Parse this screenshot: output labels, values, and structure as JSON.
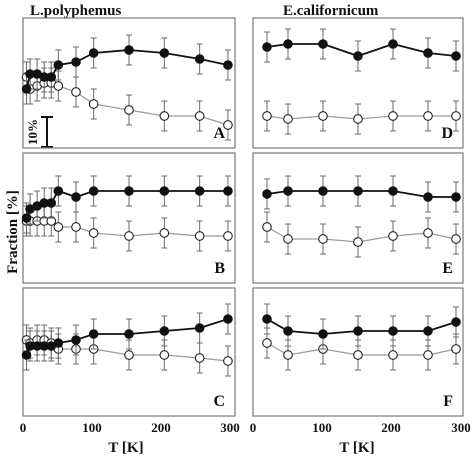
{
  "figure": {
    "column_titles": [
      "L.polyphemus",
      "E.californicum"
    ],
    "ylabel": "Fraction [%]",
    "xlabel": "T [K]",
    "scale_bar_label": "10%",
    "x_ticks": [
      "0",
      "100",
      "200",
      "300"
    ]
  },
  "chart_data": [
    {
      "type": "line",
      "panel": "A",
      "column": "L.polyphemus",
      "x": [
        5,
        10,
        20,
        30,
        40,
        50,
        75,
        100,
        150,
        200,
        250,
        290
      ],
      "xlim": [
        0,
        300
      ],
      "series": [
        {
          "marker": "filled",
          "values": [
            78,
            83,
            83,
            82,
            82,
            86,
            87,
            90,
            91,
            90,
            88,
            86
          ],
          "error": [
            5,
            5,
            5,
            5,
            5,
            5,
            5,
            5,
            5,
            5,
            5,
            5
          ]
        },
        {
          "marker": "open",
          "values": [
            82,
            78,
            79,
            80,
            80,
            79,
            77,
            73,
            71,
            69,
            69,
            66
          ],
          "error": [
            5,
            5,
            5,
            5,
            5,
            5,
            5,
            5,
            5,
            5,
            5,
            5
          ]
        }
      ]
    },
    {
      "type": "line",
      "panel": "B",
      "column": "L.polyphemus",
      "x": [
        5,
        10,
        20,
        30,
        40,
        50,
        75,
        100,
        150,
        200,
        250,
        290
      ],
      "xlim": [
        0,
        300
      ],
      "series": [
        {
          "marker": "filled",
          "values": [
            80,
            83,
            84,
            85,
            85,
            89,
            87,
            89,
            89,
            89,
            89,
            89
          ],
          "error": [
            5,
            5,
            5,
            5,
            5,
            5,
            5,
            5,
            5,
            5,
            5,
            5
          ]
        },
        {
          "marker": "open",
          "values": [
            79,
            79,
            79,
            79,
            79,
            77,
            77,
            75,
            74,
            75,
            74,
            74
          ],
          "error": [
            5,
            5,
            5,
            5,
            5,
            5,
            5,
            5,
            5,
            5,
            5,
            5
          ]
        }
      ]
    },
    {
      "type": "line",
      "panel": "C",
      "column": "L.polyphemus",
      "x": [
        5,
        10,
        20,
        30,
        40,
        50,
        75,
        100,
        150,
        200,
        250,
        290
      ],
      "xlim": [
        0,
        300
      ],
      "series": [
        {
          "marker": "filled",
          "values": [
            79,
            82,
            82,
            82,
            82,
            83,
            84,
            86,
            86,
            87,
            88,
            91
          ],
          "error": [
            5,
            5,
            5,
            5,
            5,
            5,
            5,
            5,
            5,
            5,
            5,
            5
          ]
        },
        {
          "marker": "open",
          "values": [
            84,
            83,
            84,
            84,
            83,
            81,
            81,
            81,
            79,
            79,
            78,
            77
          ],
          "error": [
            5,
            5,
            5,
            5,
            5,
            5,
            5,
            5,
            5,
            5,
            5,
            5
          ]
        }
      ]
    },
    {
      "type": "line",
      "panel": "D",
      "column": "E.californicum",
      "x": [
        20,
        50,
        100,
        150,
        200,
        250,
        290
      ],
      "xlim": [
        0,
        300
      ],
      "series": [
        {
          "marker": "filled",
          "values": [
            92,
            93,
            93,
            89,
            93,
            90,
            89
          ],
          "error": [
            5,
            5,
            5,
            5,
            5,
            5,
            5
          ]
        },
        {
          "marker": "open",
          "values": [
            69,
            68,
            69,
            68,
            69,
            69,
            69
          ],
          "error": [
            5,
            5,
            5,
            5,
            5,
            5,
            5
          ]
        }
      ]
    },
    {
      "type": "line",
      "panel": "E",
      "column": "E.californicum",
      "x": [
        20,
        50,
        100,
        150,
        200,
        250,
        290
      ],
      "xlim": [
        0,
        300
      ],
      "series": [
        {
          "marker": "filled",
          "values": [
            88,
            89,
            89,
            89,
            89,
            87,
            87
          ],
          "error": [
            5,
            5,
            5,
            5,
            5,
            5,
            5
          ]
        },
        {
          "marker": "open",
          "values": [
            77,
            73,
            73,
            72,
            74,
            75,
            73
          ],
          "error": [
            5,
            5,
            5,
            5,
            5,
            5,
            5
          ]
        }
      ]
    },
    {
      "type": "line",
      "panel": "F",
      "column": "E.californicum",
      "x": [
        20,
        50,
        100,
        150,
        200,
        250,
        290
      ],
      "xlim": [
        0,
        300
      ],
      "series": [
        {
          "marker": "filled",
          "values": [
            91,
            87,
            86,
            87,
            87,
            87,
            90
          ],
          "error": [
            5,
            5,
            5,
            5,
            5,
            5,
            5
          ]
        },
        {
          "marker": "open",
          "values": [
            83,
            79,
            81,
            79,
            79,
            79,
            81
          ],
          "error": [
            5,
            5,
            5,
            5,
            5,
            5,
            5
          ]
        }
      ]
    }
  ]
}
